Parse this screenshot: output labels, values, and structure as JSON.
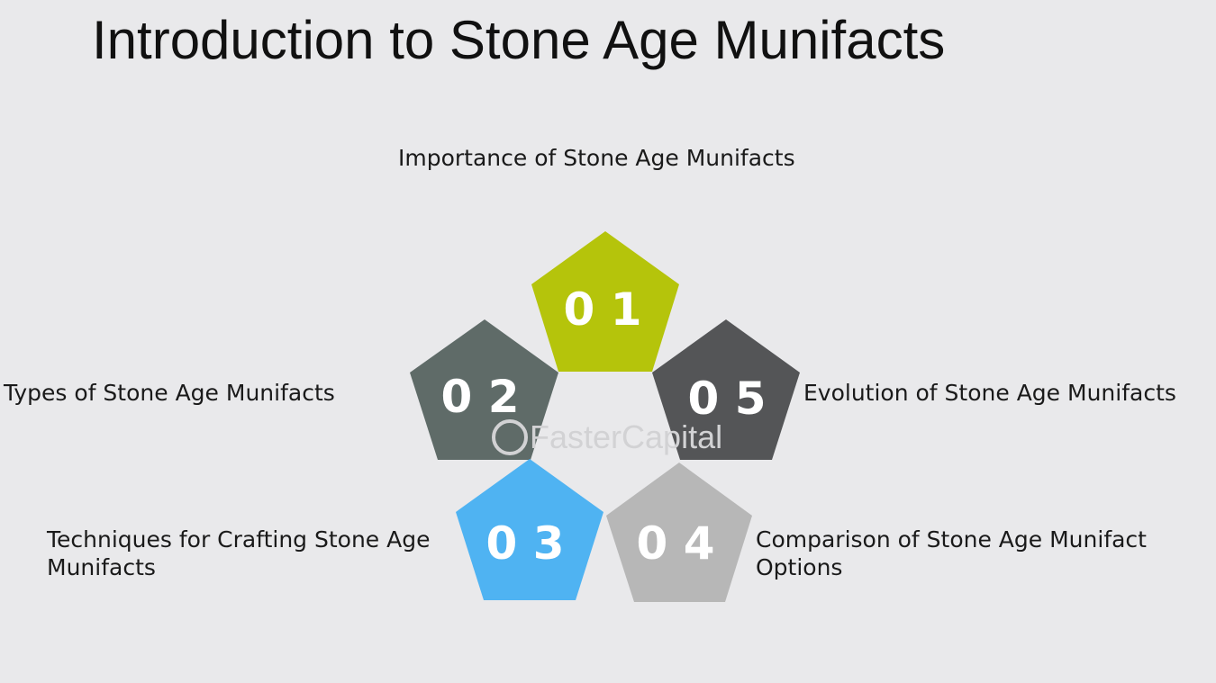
{
  "title": "Introduction to Stone Age Munifacts",
  "items": [
    {
      "number": "0 1",
      "label": "Importance of Stone Age Munifacts",
      "color": "#b5c40b"
    },
    {
      "number": "0 2",
      "label": "Types of Stone Age Munifacts",
      "color": "#5f6b68"
    },
    {
      "number": "0 3",
      "label": "Techniques for Crafting Stone Age Munifacts",
      "color": "#4fb3f2"
    },
    {
      "number": "0 4",
      "label": "Comparison of Stone Age Munifact Options",
      "color": "#b7b7b7"
    },
    {
      "number": "0 5",
      "label": "Evolution of Stone Age Munifacts",
      "color": "#545557"
    }
  ],
  "watermark": "FasterCapital"
}
